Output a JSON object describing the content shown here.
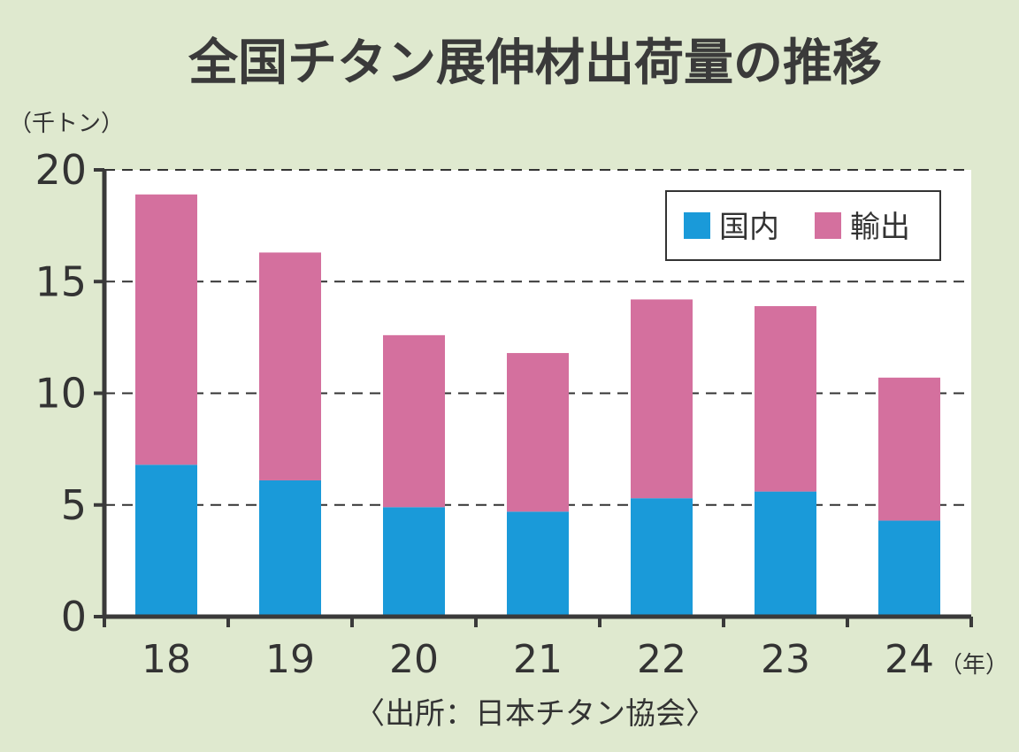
{
  "chart_data": {
    "type": "bar",
    "stacked": true,
    "title": "全国チタン展伸材出荷量の推移",
    "ylabel": "（千トン）",
    "xlabel": "（年）",
    "source": "〈出所：日本チタン協会〉",
    "categories": [
      "18",
      "19",
      "20",
      "21",
      "22",
      "23",
      "24"
    ],
    "ylim": [
      0,
      20
    ],
    "yticks": [
      "0",
      "5",
      "10",
      "15",
      "20"
    ],
    "grid": "dashed horizontal",
    "legend_placement": "top-right",
    "series": [
      {
        "name": "国内",
        "color": "#1a9ad9",
        "values": [
          6.8,
          6.1,
          4.9,
          4.7,
          5.3,
          5.6,
          4.3
        ]
      },
      {
        "name": "輸出",
        "color": "#d4709e",
        "values": [
          12.1,
          10.2,
          7.7,
          7.1,
          8.9,
          8.3,
          6.4
        ]
      }
    ]
  },
  "colors": {
    "background": "#dfe9cf",
    "plot_background": "#ffffff",
    "axis": "#3a3a3a"
  }
}
